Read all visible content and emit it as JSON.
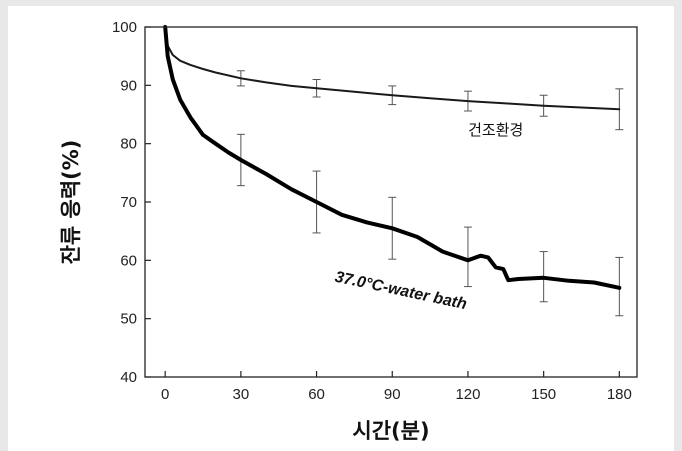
{
  "chart_data": {
    "type": "line",
    "title": "",
    "xlabel": "시간(분)",
    "ylabel": "잔류 응력(%)",
    "xlim": [
      -8,
      187
    ],
    "ylim": [
      40,
      100
    ],
    "xticks": [
      0,
      30,
      60,
      90,
      120,
      150,
      180
    ],
    "yticks": [
      40,
      50,
      60,
      70,
      80,
      90,
      100
    ],
    "grid": false,
    "series": [
      {
        "name": "건조환경",
        "color": "#1a1a1a",
        "x": [
          0,
          1,
          3,
          6,
          10,
          15,
          20,
          30,
          40,
          50,
          60,
          75,
          90,
          105,
          120,
          135,
          150,
          165,
          180
        ],
        "y": [
          100,
          96.8,
          95.2,
          94.2,
          93.5,
          92.8,
          92.2,
          91.2,
          90.5,
          89.9,
          89.5,
          88.9,
          88.3,
          87.8,
          87.3,
          86.9,
          86.5,
          86.2,
          85.9
        ],
        "errors": [
          {
            "x": 30,
            "y": 91.2,
            "err": 1.3
          },
          {
            "x": 60,
            "y": 89.5,
            "err": 1.5
          },
          {
            "x": 90,
            "y": 88.3,
            "err": 1.6
          },
          {
            "x": 120,
            "y": 87.3,
            "err": 1.7
          },
          {
            "x": 150,
            "y": 86.5,
            "err": 1.8
          },
          {
            "x": 180,
            "y": 85.9,
            "err": 3.5
          }
        ]
      },
      {
        "name": "37.0°C-water bath",
        "color": "#000000",
        "x": [
          0,
          1,
          3,
          6,
          10,
          15,
          20,
          25,
          30,
          40,
          50,
          60,
          70,
          80,
          90,
          100,
          110,
          120,
          125,
          128,
          131,
          134,
          136,
          140,
          150,
          160,
          170,
          180
        ],
        "y": [
          100,
          95,
          91,
          87.5,
          84.5,
          81.5,
          80,
          78.5,
          77.2,
          74.8,
          72.2,
          70,
          67.8,
          66.5,
          65.5,
          64,
          61.5,
          60,
          60.8,
          60.5,
          58.8,
          58.5,
          56.6,
          56.8,
          57,
          56.5,
          56.2,
          55.3
        ],
        "errors": [
          {
            "x": 30,
            "y": 77.2,
            "err": 4.4
          },
          {
            "x": 60,
            "y": 70,
            "err": 5.3
          },
          {
            "x": 90,
            "y": 65.5,
            "err": 5.3
          },
          {
            "x": 120,
            "y": 60.6,
            "err": 5.1
          },
          {
            "x": 150,
            "y": 57.2,
            "err": 4.3
          },
          {
            "x": 180,
            "y": 55.5,
            "err": 5.0
          }
        ]
      }
    ],
    "annotations": [
      {
        "text": "건조환경",
        "x": 131,
        "y": 81.5,
        "style": "plain"
      },
      {
        "text": "37.0°C-water bath",
        "x": 93,
        "y": 54,
        "style": "italic-bold",
        "rotate": 12
      }
    ]
  }
}
